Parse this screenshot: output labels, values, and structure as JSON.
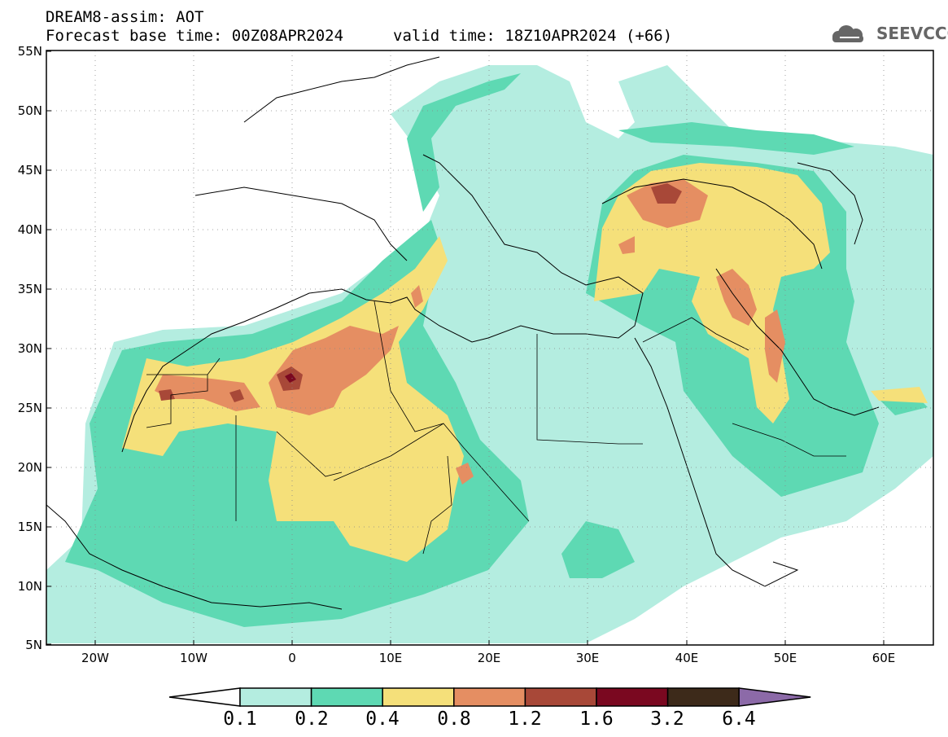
{
  "header": {
    "line1": "DREAM8-assim: AOT",
    "line2": "Forecast base time: 00Z08APR2024",
    "valid": "valid time: 18Z10APR2024 (+66)"
  },
  "logo": {
    "text": "SEEVCCC",
    "icon": "cloud-icon"
  },
  "map": {
    "lat_labels": [
      "55N",
      "50N",
      "45N",
      "40N",
      "35N",
      "30N",
      "25N",
      "20N",
      "15N",
      "10N",
      "5N"
    ],
    "lon_labels": [
      "20W",
      "10W",
      "0",
      "10E",
      "20E",
      "30E",
      "40E",
      "50E",
      "60E"
    ],
    "lat_range": [
      5,
      55
    ],
    "lon_range": [
      -25,
      65
    ],
    "grid": "dotted"
  },
  "colorbar": {
    "levels": [
      "0.1",
      "0.2",
      "0.4",
      "0.8",
      "1.2",
      "1.6",
      "3.2",
      "6.4"
    ],
    "colors": [
      "#ffffff",
      "#b4ede0",
      "#5ed9b3",
      "#f5e07a",
      "#e58e62",
      "#a84838",
      "#7a0820",
      "#3d2a1a",
      "#8c6aa8"
    ]
  }
}
